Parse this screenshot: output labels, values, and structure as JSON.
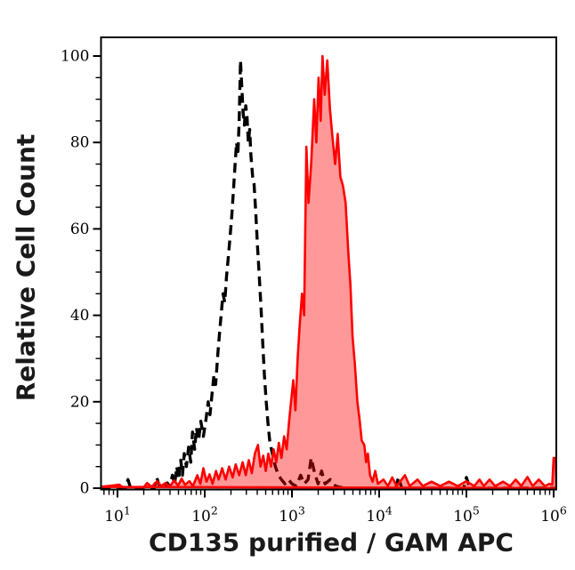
{
  "figure": {
    "background": "#ffffff",
    "plot_border_color": "#000000"
  },
  "chart_data": {
    "type": "area",
    "subtype": "flow-cytometry-overlay-histogram",
    "title": "",
    "xlabel": "CD135 purified / GAM APC",
    "ylabel": "Relative Cell Count",
    "x_scale": "log10",
    "x_range_log10": [
      0.81,
      6.03
    ],
    "y_range": [
      0,
      104.5
    ],
    "grid": false,
    "legend_position": "none",
    "y_major_ticks": [
      0,
      20,
      40,
      60,
      80,
      100
    ],
    "y_tick_labels": [
      "0",
      "20",
      "40",
      "60",
      "80",
      "100"
    ],
    "y_minor_step": 5,
    "x_major_tick_exponents": [
      1,
      2,
      3,
      4,
      5,
      6
    ],
    "x_tick_label_base": "10",
    "x_minor_tick_multiples": [
      2,
      3,
      4,
      5,
      6,
      7,
      8,
      9
    ],
    "series": [
      {
        "name": "black-dashed-histogram (unstained control)",
        "line_style": "dashed",
        "color": "#000000",
        "fill": "none",
        "peak_x": 260,
        "peak_y": 99,
        "points_logx_y": [
          [
            0.81,
            0
          ],
          [
            1.09,
            0
          ],
          [
            1.12,
            2
          ],
          [
            1.15,
            0
          ],
          [
            1.42,
            0
          ],
          [
            1.45,
            2.5
          ],
          [
            1.48,
            0.5
          ],
          [
            1.53,
            0
          ],
          [
            1.57,
            1.2
          ],
          [
            1.6,
            0.4
          ],
          [
            1.63,
            3
          ],
          [
            1.655,
            1
          ],
          [
            1.68,
            5
          ],
          [
            1.7,
            2
          ],
          [
            1.725,
            6.5
          ],
          [
            1.745,
            3
          ],
          [
            1.765,
            8
          ],
          [
            1.79,
            5
          ],
          [
            1.815,
            9.5
          ],
          [
            1.84,
            6
          ],
          [
            1.86,
            13
          ],
          [
            1.885,
            9
          ],
          [
            1.905,
            14
          ],
          [
            1.93,
            11
          ],
          [
            1.955,
            15.5
          ],
          [
            1.985,
            12
          ],
          [
            2.015,
            16
          ],
          [
            2.04,
            20
          ],
          [
            2.06,
            17
          ],
          [
            2.085,
            22
          ],
          [
            2.105,
            26
          ],
          [
            2.125,
            24
          ],
          [
            2.15,
            31
          ],
          [
            2.17,
            36
          ],
          [
            2.19,
            40.5
          ],
          [
            2.21,
            45
          ],
          [
            2.23,
            43
          ],
          [
            2.25,
            49
          ],
          [
            2.27,
            53.5
          ],
          [
            2.29,
            58
          ],
          [
            2.31,
            63
          ],
          [
            2.33,
            69
          ],
          [
            2.35,
            75.5
          ],
          [
            2.365,
            80
          ],
          [
            2.38,
            77
          ],
          [
            2.395,
            85
          ],
          [
            2.41,
            99
          ],
          [
            2.425,
            93
          ],
          [
            2.44,
            87
          ],
          [
            2.455,
            84
          ],
          [
            2.47,
            88.5
          ],
          [
            2.485,
            86
          ],
          [
            2.5,
            80
          ],
          [
            2.515,
            83
          ],
          [
            2.53,
            77
          ],
          [
            2.55,
            72
          ],
          [
            2.565,
            70.5
          ],
          [
            2.585,
            64
          ],
          [
            2.605,
            56
          ],
          [
            2.625,
            49
          ],
          [
            2.645,
            42
          ],
          [
            2.665,
            33.5
          ],
          [
            2.685,
            26
          ],
          [
            2.705,
            20
          ],
          [
            2.725,
            15
          ],
          [
            2.745,
            11
          ],
          [
            2.775,
            8
          ],
          [
            2.81,
            5
          ],
          [
            2.845,
            3
          ],
          [
            2.88,
            2
          ],
          [
            2.92,
            1
          ],
          [
            2.96,
            2
          ],
          [
            3.0,
            1
          ],
          [
            3.05,
            0.5
          ],
          [
            3.1,
            3
          ],
          [
            3.14,
            1
          ],
          [
            3.185,
            2
          ],
          [
            3.22,
            7
          ],
          [
            3.26,
            3.5
          ],
          [
            3.3,
            1
          ],
          [
            3.34,
            4
          ],
          [
            3.38,
            1
          ],
          [
            3.44,
            2
          ],
          [
            3.5,
            0.5
          ],
          [
            3.6,
            0
          ],
          [
            4.19,
            0
          ],
          [
            4.22,
            2.5
          ],
          [
            4.26,
            0
          ],
          [
            4.97,
            0
          ],
          [
            5.0,
            2.5
          ],
          [
            5.04,
            0
          ],
          [
            6.03,
            0
          ]
        ]
      },
      {
        "name": "red-filled-histogram (CD135 purified / GAM APC stained)",
        "line_style": "solid",
        "color": "#ff0000",
        "fill": "#ff0000",
        "fill_opacity": 0.4,
        "peak_x": 2240,
        "peak_y": 100,
        "points_logx_y": [
          [
            0.81,
            0.3
          ],
          [
            1.02,
            0.8
          ],
          [
            1.06,
            0.2
          ],
          [
            1.3,
            0.2
          ],
          [
            1.34,
            1.2
          ],
          [
            1.39,
            0.3
          ],
          [
            1.455,
            1.6
          ],
          [
            1.5,
            0.5
          ],
          [
            1.55,
            1.2
          ],
          [
            1.6,
            0.4
          ],
          [
            1.65,
            1.8
          ],
          [
            1.695,
            0.6
          ],
          [
            1.735,
            2.2
          ],
          [
            1.775,
            0.8
          ],
          [
            1.825,
            1.6
          ],
          [
            1.865,
            0.5
          ],
          [
            1.915,
            3
          ],
          [
            1.95,
            1
          ],
          [
            1.985,
            4.6
          ],
          [
            2.02,
            1.5
          ],
          [
            2.055,
            3.2
          ],
          [
            2.09,
            1
          ],
          [
            2.13,
            4
          ],
          [
            2.16,
            2
          ],
          [
            2.2,
            4.6
          ],
          [
            2.24,
            2
          ],
          [
            2.28,
            5
          ],
          [
            2.32,
            2.5
          ],
          [
            2.355,
            5.5
          ],
          [
            2.395,
            3
          ],
          [
            2.435,
            6
          ],
          [
            2.47,
            3
          ],
          [
            2.505,
            6.5
          ],
          [
            2.54,
            3.5
          ],
          [
            2.575,
            8
          ],
          [
            2.61,
            10
          ],
          [
            2.64,
            5
          ],
          [
            2.67,
            7.5
          ],
          [
            2.7,
            4
          ],
          [
            2.73,
            8
          ],
          [
            2.76,
            5
          ],
          [
            2.79,
            9
          ],
          [
            2.82,
            6
          ],
          [
            2.85,
            10.5
          ],
          [
            2.88,
            7
          ],
          [
            2.91,
            12
          ],
          [
            2.94,
            9
          ],
          [
            2.965,
            15
          ],
          [
            2.99,
            20
          ],
          [
            3.015,
            25
          ],
          [
            3.04,
            18
          ],
          [
            3.065,
            30
          ],
          [
            3.09,
            38
          ],
          [
            3.115,
            45
          ],
          [
            3.14,
            40
          ],
          [
            3.165,
            79
          ],
          [
            3.19,
            66
          ],
          [
            3.22,
            75
          ],
          [
            3.255,
            90
          ],
          [
            3.28,
            80
          ],
          [
            3.305,
            95
          ],
          [
            3.33,
            85
          ],
          [
            3.35,
            100
          ],
          [
            3.375,
            91
          ],
          [
            3.405,
            99
          ],
          [
            3.435,
            88
          ],
          [
            3.465,
            81
          ],
          [
            3.495,
            75
          ],
          [
            3.525,
            82
          ],
          [
            3.555,
            72
          ],
          [
            3.585,
            70
          ],
          [
            3.615,
            66
          ],
          [
            3.645,
            55
          ],
          [
            3.67,
            47
          ],
          [
            3.695,
            35
          ],
          [
            3.72,
            29
          ],
          [
            3.75,
            20
          ],
          [
            3.775,
            16
          ],
          [
            3.8,
            11
          ],
          [
            3.83,
            10
          ],
          [
            3.85,
            6
          ],
          [
            3.87,
            8
          ],
          [
            3.895,
            3
          ],
          [
            3.925,
            1.5
          ],
          [
            3.955,
            4
          ],
          [
            3.985,
            1
          ],
          [
            4.05,
            2
          ],
          [
            4.1,
            0.5
          ],
          [
            4.15,
            2.5
          ],
          [
            4.2,
            0.5
          ],
          [
            4.295,
            3
          ],
          [
            4.35,
            0.5
          ],
          [
            4.44,
            2
          ],
          [
            4.5,
            0.5
          ],
          [
            4.6,
            1.5
          ],
          [
            4.7,
            0.5
          ],
          [
            4.8,
            1.5
          ],
          [
            4.9,
            0.5
          ],
          [
            5.0,
            1.6
          ],
          [
            5.09,
            0.5
          ],
          [
            5.15,
            2
          ],
          [
            5.2,
            0.5
          ],
          [
            5.265,
            2
          ],
          [
            5.33,
            0.5
          ],
          [
            5.42,
            1.5
          ],
          [
            5.5,
            0.5
          ],
          [
            5.565,
            2
          ],
          [
            5.63,
            0.5
          ],
          [
            5.7,
            2.6
          ],
          [
            5.76,
            0.5
          ],
          [
            5.83,
            2
          ],
          [
            5.9,
            0.5
          ],
          [
            5.95,
            1
          ],
          [
            5.985,
            0.8
          ],
          [
            6.0,
            7
          ],
          [
            6.025,
            7
          ],
          [
            6.03,
            0
          ]
        ]
      }
    ]
  }
}
